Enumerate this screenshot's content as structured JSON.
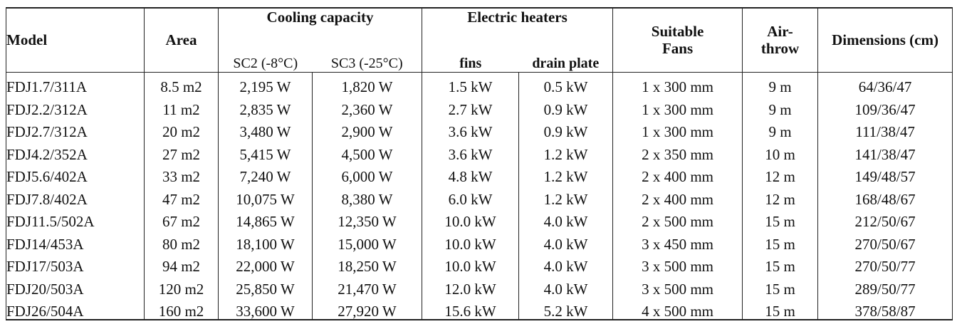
{
  "headers": {
    "model": "Model",
    "area": "Area",
    "cooling": "Cooling capacity",
    "sc2": "SC2 (-8°C)",
    "sc3": "SC3 (-25°C)",
    "heaters": "Electric heaters",
    "fins": "fins",
    "drain": "drain plate",
    "fans_line1": "Suitable",
    "fans_line2": "Fans",
    "air_line1": "Air-",
    "air_line2": "throw",
    "dimensions": "Dimensions (cm)"
  },
  "rows": [
    [
      "FDJ1.7/311A",
      "8.5 m2",
      "2,195 W",
      "1,820 W",
      "1.5 kW",
      "0.5 kW",
      "1 x 300 mm",
      "9 m",
      "64/36/47"
    ],
    [
      "FDJ2.2/312A",
      "11 m2",
      "2,835 W",
      "2,360 W",
      "2.7 kW",
      "0.9 kW",
      "1 x 300 mm",
      "9 m",
      "109/36/47"
    ],
    [
      "FDJ2.7/312A",
      "20 m2",
      "3,480 W",
      "2,900 W",
      "3.6 kW",
      "0.9 kW",
      "1 x 300 mm",
      "9 m",
      "111/38/47"
    ],
    [
      "FDJ4.2/352A",
      "27 m2",
      "5,415 W",
      "4,500 W",
      "3.6 kW",
      "1.2 kW",
      "2 x 350 mm",
      "10 m",
      "141/38/47"
    ],
    [
      "FDJ5.6/402A",
      "33 m2",
      "7,240 W",
      "6,000 W",
      "4.8 kW",
      "1.2 kW",
      "2 x 400 mm",
      "12 m",
      "149/48/57"
    ],
    [
      "FDJ7.8/402A",
      "47 m2",
      "10,075 W",
      "8,380 W",
      "6.0 kW",
      "1.2 kW",
      "2 x 400 mm",
      "12 m",
      "168/48/67"
    ],
    [
      "FDJ11.5/502A",
      "67 m2",
      "14,865 W",
      "12,350 W",
      "10.0 kW",
      "4.0 kW",
      "2 x 500 mm",
      "15 m",
      "212/50/67"
    ],
    [
      "FDJ14/453A",
      "80 m2",
      "18,100 W",
      "15,000 W",
      "10.0 kW",
      "4.0 kW",
      "3 x 450 mm",
      "15 m",
      "270/50/67"
    ],
    [
      "FDJ17/503A",
      "94 m2",
      "22,000 W",
      "18,250 W",
      "10.0 kW",
      "4.0 kW",
      "3 x 500 mm",
      "15 m",
      "270/50/77"
    ],
    [
      "FDJ20/503A",
      "120 m2",
      "25,850 W",
      "21,470 W",
      "12.0 kW",
      "4.0 kW",
      "3 x 500 mm",
      "15 m",
      "289/50/77"
    ],
    [
      "FDJ26/504A",
      "160 m2",
      "33,600 W",
      "27,920 W",
      "15.6 kW",
      "5.2 kW",
      "4 x 500 mm",
      "15 m",
      "378/58/87"
    ]
  ]
}
